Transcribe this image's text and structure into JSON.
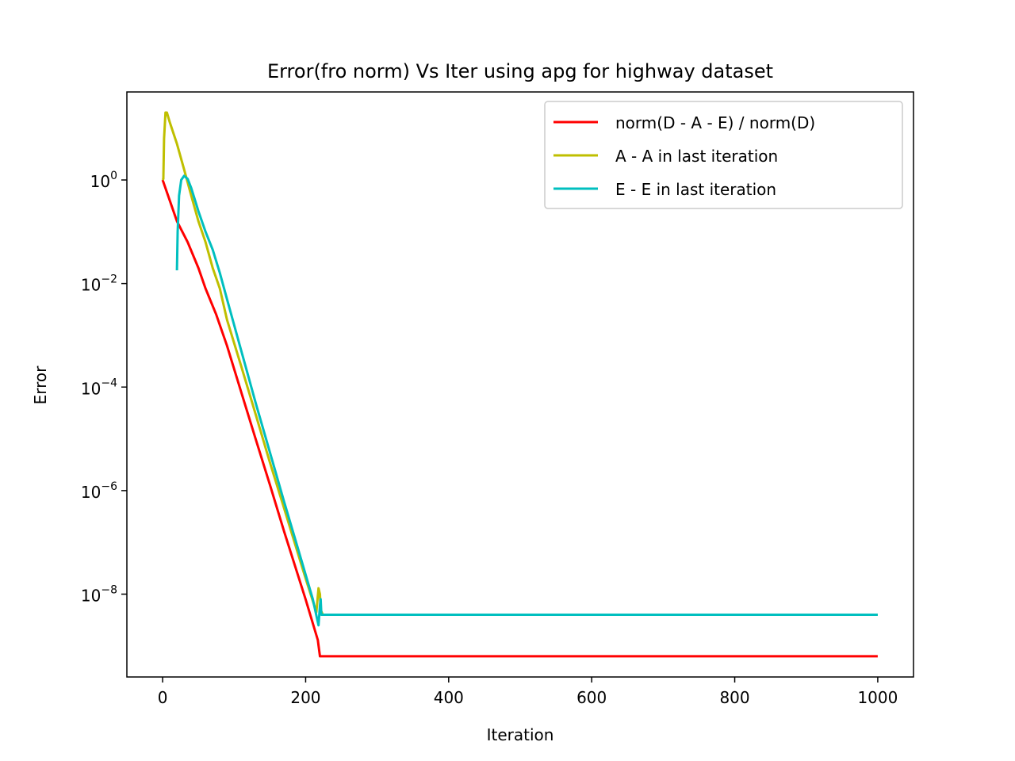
{
  "chart_data": {
    "type": "line",
    "title": "Error(fro norm) Vs Iter using apg for highway dataset",
    "xlabel": "Iteration",
    "ylabel": "Error",
    "xlim": [
      -50,
      1050
    ],
    "ylim_log10": [
      -9.6,
      1.7
    ],
    "yscale": "log",
    "x_ticks": [
      0,
      200,
      400,
      600,
      800,
      1000
    ],
    "x_tick_labels": [
      "0",
      "200",
      "400",
      "600",
      "800",
      "1000"
    ],
    "y_ticks_exp": [
      0,
      -2,
      -4,
      -6,
      -8
    ],
    "y_tick_labels": [
      {
        "base": "10",
        "exp": "0"
      },
      {
        "base": "10",
        "exp": "−2"
      },
      {
        "base": "10",
        "exp": "−4"
      },
      {
        "base": "10",
        "exp": "−6"
      },
      {
        "base": "10",
        "exp": "−8"
      }
    ],
    "grid": false,
    "legend_position": "top-right",
    "series": [
      {
        "name": "norm(D - A - E) / norm(D)",
        "color": "#ff0000",
        "points": [
          [
            0,
            1.0
          ],
          [
            10,
            0.4
          ],
          [
            20,
            0.16
          ],
          [
            35,
            0.063
          ],
          [
            50,
            0.02
          ],
          [
            60,
            0.008
          ],
          [
            75,
            0.0025
          ],
          [
            90,
            0.00063
          ],
          [
            110,
            7.9e-05
          ],
          [
            130,
            1e-05
          ],
          [
            150,
            1.3e-06
          ],
          [
            170,
            1.6e-07
          ],
          [
            200,
            7.9e-09
          ],
          [
            217,
            1.3e-09
          ],
          [
            220,
            6.3e-10
          ],
          [
            1000,
            6.3e-10
          ]
        ]
      },
      {
        "name": "A - A in last iteration",
        "color": "#bfbf00",
        "points": [
          [
            0,
            1.0
          ],
          [
            1,
            1.05
          ],
          [
            2,
            6.3
          ],
          [
            4,
            20
          ],
          [
            6,
            20
          ],
          [
            10,
            13
          ],
          [
            20,
            5.0
          ],
          [
            30,
            1.6
          ],
          [
            40,
            0.5
          ],
          [
            50,
            0.16
          ],
          [
            60,
            0.063
          ],
          [
            70,
            0.02
          ],
          [
            80,
            0.008
          ],
          [
            90,
            0.002
          ],
          [
            110,
            0.00025
          ],
          [
            130,
            3e-05
          ],
          [
            150,
            3.5e-06
          ],
          [
            170,
            4.5e-07
          ],
          [
            200,
            2e-08
          ],
          [
            215,
            4.5e-09
          ],
          [
            218,
            1.3e-08
          ],
          [
            220,
            1e-08
          ],
          [
            221,
            5e-09
          ],
          [
            224,
            4e-09
          ],
          [
            1000,
            4e-09
          ]
        ]
      },
      {
        "name": "E - E in last iteration",
        "color": "#00bfbf",
        "points": [
          [
            20,
            0.018
          ],
          [
            21,
            0.1
          ],
          [
            23,
            0.5
          ],
          [
            26,
            1.0
          ],
          [
            30,
            1.2
          ],
          [
            35,
            1.05
          ],
          [
            40,
            0.7
          ],
          [
            50,
            0.25
          ],
          [
            60,
            0.1
          ],
          [
            70,
            0.045
          ],
          [
            80,
            0.016
          ],
          [
            90,
            0.005
          ],
          [
            110,
            0.0005
          ],
          [
            130,
            5e-05
          ],
          [
            150,
            5.5e-06
          ],
          [
            170,
            6e-07
          ],
          [
            190,
            7e-08
          ],
          [
            210,
            8e-09
          ],
          [
            218,
            2.5e-09
          ],
          [
            220,
            6e-09
          ],
          [
            221,
            8e-09
          ],
          [
            222,
            4e-09
          ],
          [
            1000,
            4e-09
          ]
        ]
      }
    ]
  }
}
